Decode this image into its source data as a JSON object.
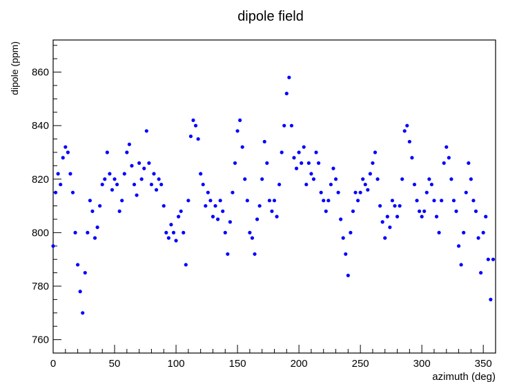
{
  "chart_data": {
    "type": "scatter",
    "title": "dipole field",
    "xlabel": "azimuth (deg)",
    "ylabel": "dipole (ppm)",
    "xlim": [
      0,
      360
    ],
    "ylim": [
      755,
      872
    ],
    "x_ticks": [
      0,
      50,
      100,
      150,
      200,
      250,
      300,
      350
    ],
    "y_ticks": [
      760,
      780,
      800,
      820,
      840,
      860
    ],
    "x_tick_labels": [
      "0",
      "50",
      "100",
      "150",
      "200",
      "250",
      "300",
      "350"
    ],
    "y_tick_labels": [
      "760",
      "780",
      "800",
      "820",
      "840",
      "860"
    ],
    "grid": false,
    "marker_color": "#0000ff",
    "series": [
      {
        "x": [
          0,
          2,
          4,
          6,
          8,
          10,
          12,
          14,
          16,
          18,
          20,
          22,
          24,
          26,
          28,
          30,
          32,
          34,
          36,
          38,
          40,
          42,
          44,
          46,
          48,
          50,
          52,
          54,
          56,
          58,
          60,
          62,
          64,
          66,
          68,
          70,
          72,
          74,
          76,
          78,
          80,
          82,
          84,
          86,
          88,
          90,
          92,
          94,
          96,
          98,
          100,
          102,
          104,
          106,
          108,
          110,
          112,
          114,
          116,
          118,
          120,
          122,
          124,
          126,
          128,
          130,
          132,
          134,
          136,
          138,
          140,
          142,
          144,
          146,
          148,
          150,
          152,
          154,
          156,
          158,
          160,
          162,
          164,
          166,
          168,
          170,
          172,
          174,
          176,
          178,
          180,
          182,
          184,
          186,
          188,
          190,
          192,
          194,
          196,
          198,
          200,
          202,
          204,
          206,
          208,
          210,
          212,
          214,
          216,
          218,
          220,
          222,
          224,
          226,
          228,
          230,
          232,
          234,
          236,
          238,
          240,
          242,
          244,
          246,
          248,
          250,
          252,
          254,
          256,
          258,
          260,
          262,
          264,
          266,
          268,
          270,
          272,
          274,
          276,
          278,
          280,
          282,
          284,
          286,
          288,
          290,
          292,
          294,
          296,
          298,
          300,
          302,
          304,
          306,
          308,
          310,
          312,
          314,
          316,
          318,
          320,
          322,
          324,
          326,
          328,
          330,
          332,
          334,
          336,
          338,
          340,
          342,
          344,
          346,
          348,
          350,
          352,
          354,
          356,
          358
        ],
        "y": [
          795,
          815,
          822,
          818,
          828,
          832,
          830,
          822,
          815,
          800,
          788,
          778,
          770,
          785,
          800,
          812,
          808,
          798,
          802,
          810,
          818,
          820,
          830,
          822,
          816,
          820,
          818,
          808,
          812,
          822,
          830,
          833,
          825,
          818,
          814,
          826,
          820,
          824,
          838,
          826,
          818,
          822,
          816,
          820,
          818,
          810,
          800,
          798,
          803,
          800,
          797,
          806,
          808,
          800,
          788,
          812,
          836,
          842,
          840,
          835,
          822,
          818,
          810,
          815,
          812,
          806,
          810,
          805,
          812,
          808,
          800,
          792,
          804,
          815,
          826,
          838,
          842,
          832,
          820,
          812,
          800,
          798,
          792,
          805,
          810,
          820,
          834,
          826,
          812,
          808,
          812,
          806,
          818,
          830,
          840,
          852,
          858,
          840,
          828,
          824,
          830,
          826,
          832,
          818,
          826,
          822,
          820,
          830,
          826,
          815,
          812,
          808,
          812,
          818,
          824,
          820,
          815,
          805,
          798,
          792,
          784,
          800,
          808,
          815,
          812,
          815,
          820,
          818,
          816,
          822,
          826,
          830,
          820,
          810,
          804,
          798,
          806,
          802,
          812,
          810,
          806,
          810,
          820,
          838,
          840,
          834,
          828,
          818,
          812,
          808,
          806,
          808,
          815,
          820,
          818,
          812,
          806,
          800,
          812,
          826,
          832,
          828,
          820,
          812,
          808,
          795,
          788,
          800,
          815,
          826,
          820,
          812,
          808,
          798,
          785,
          800,
          806,
          790,
          775,
          790
        ]
      }
    ]
  }
}
